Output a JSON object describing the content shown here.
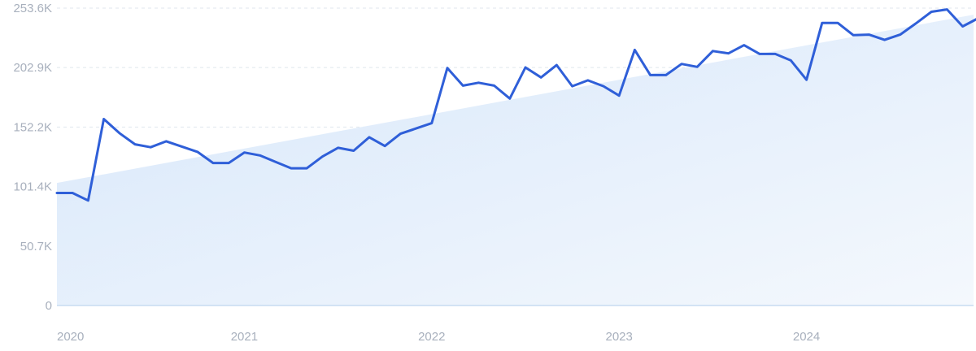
{
  "chart_data": {
    "type": "line",
    "title": "",
    "xlabel": "",
    "ylabel": "",
    "grid": true,
    "line_color": "#2f5fd8",
    "trend_fill_color": "#dcebfb",
    "ylim": [
      0,
      253600
    ],
    "y_ticks": [
      {
        "value": 0,
        "label": "0"
      },
      {
        "value": 50700,
        "label": "50.7K"
      },
      {
        "value": 101400,
        "label": "101.4K"
      },
      {
        "value": 152200,
        "label": "152.2K"
      },
      {
        "value": 202900,
        "label": "202.9K"
      },
      {
        "value": 253600,
        "label": "253.6K"
      }
    ],
    "x_ticks": [
      {
        "value": "2020-01",
        "label": "2020"
      },
      {
        "value": "2021-01",
        "label": "2021"
      },
      {
        "value": "2022-01",
        "label": "2022"
      },
      {
        "value": "2023-01",
        "label": "2023"
      },
      {
        "value": "2024-01",
        "label": "2024"
      }
    ],
    "trend": {
      "start": 104500,
      "end": 248000
    },
    "series": [
      {
        "x": [
          "2020-01",
          "2020-02",
          "2020-03",
          "2020-04",
          "2020-05",
          "2020-06",
          "2020-07",
          "2020-08",
          "2020-09",
          "2020-10",
          "2020-11",
          "2020-12",
          "2021-01",
          "2021-02",
          "2021-03",
          "2021-04",
          "2021-05",
          "2021-06",
          "2021-07",
          "2021-08",
          "2021-09",
          "2021-10",
          "2021-11",
          "2021-12",
          "2022-01",
          "2022-02",
          "2022-03",
          "2022-04",
          "2022-05",
          "2022-06",
          "2022-07",
          "2022-08",
          "2022-09",
          "2022-10",
          "2022-11",
          "2022-12",
          "2023-01",
          "2023-02",
          "2023-03",
          "2023-04",
          "2023-05",
          "2023-06",
          "2023-07",
          "2023-08",
          "2023-09",
          "2023-10",
          "2023-11",
          "2023-12",
          "2024-01",
          "2024-02",
          "2024-03",
          "2024-04",
          "2024-05",
          "2024-06",
          "2024-07",
          "2024-08",
          "2024-09",
          "2024-10",
          "2024-11",
          "2024-12"
        ],
        "values": [
          96000,
          96000,
          89500,
          159000,
          147000,
          137500,
          135000,
          140000,
          135500,
          131000,
          121500,
          121500,
          130500,
          128000,
          122500,
          117000,
          117000,
          127000,
          134500,
          132000,
          143500,
          136000,
          146500,
          151000,
          155500,
          202500,
          187500,
          190000,
          187500,
          176500,
          203000,
          194500,
          205000,
          187000,
          192000,
          187000,
          179000,
          218000,
          196500,
          196500,
          206000,
          203500,
          217000,
          215000,
          222000,
          214500,
          214500,
          209000,
          192500,
          241000,
          241000,
          230500,
          231000,
          226500,
          231000,
          240500,
          250500,
          252500,
          238000,
          245000
        ]
      }
    ]
  }
}
